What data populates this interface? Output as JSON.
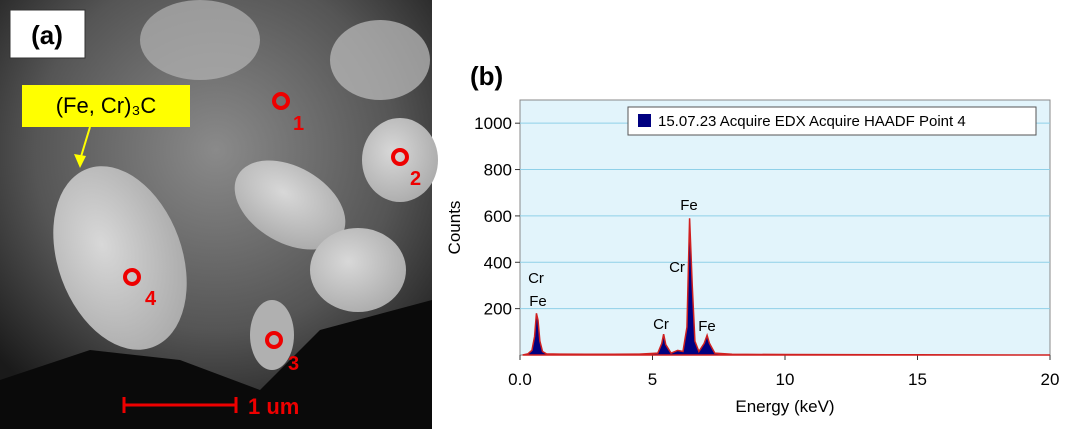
{
  "panel_a": {
    "label": "(a)",
    "phase_label": "(Fe, Cr)₃C",
    "points": [
      "1",
      "2",
      "3",
      "4"
    ],
    "scale_bar": "1 um"
  },
  "chart_data": {
    "type": "line",
    "panel_label": "(b)",
    "x_label": "Energy (keV)",
    "y_label": "Counts",
    "xlim": [
      0,
      20
    ],
    "ylim": [
      0,
      1100
    ],
    "xticks": [
      {
        "value": 0,
        "label": "0.0"
      },
      5,
      10,
      15,
      20
    ],
    "yticks": [
      200,
      400,
      600,
      800,
      1000
    ],
    "grid": true,
    "legend": "upper right",
    "peak_labels": [
      "Cr",
      "Fe",
      "Cr",
      "Fe",
      "Cr",
      "Fe"
    ],
    "series": [
      {
        "name": "15.07.23 Acquire EDX Acquire HAADF Point 4",
        "color": "#000080",
        "x": [
          0.1,
          0.3,
          0.45,
          0.55,
          0.62,
          0.68,
          0.75,
          0.85,
          1.0,
          1.5,
          2.5,
          3.5,
          4.5,
          5.2,
          5.35,
          5.42,
          5.5,
          5.7,
          5.95,
          6.15,
          6.3,
          6.4,
          6.5,
          6.6,
          6.75,
          6.95,
          7.06,
          7.15,
          7.35,
          8.0,
          10.0,
          15.0,
          20.0
        ],
        "values": [
          0,
          5,
          20,
          80,
          180,
          150,
          60,
          15,
          5,
          4,
          3,
          3,
          4,
          8,
          50,
          90,
          45,
          8,
          20,
          15,
          120,
          590,
          300,
          60,
          15,
          50,
          85,
          50,
          8,
          3,
          2,
          1,
          0
        ]
      }
    ]
  }
}
